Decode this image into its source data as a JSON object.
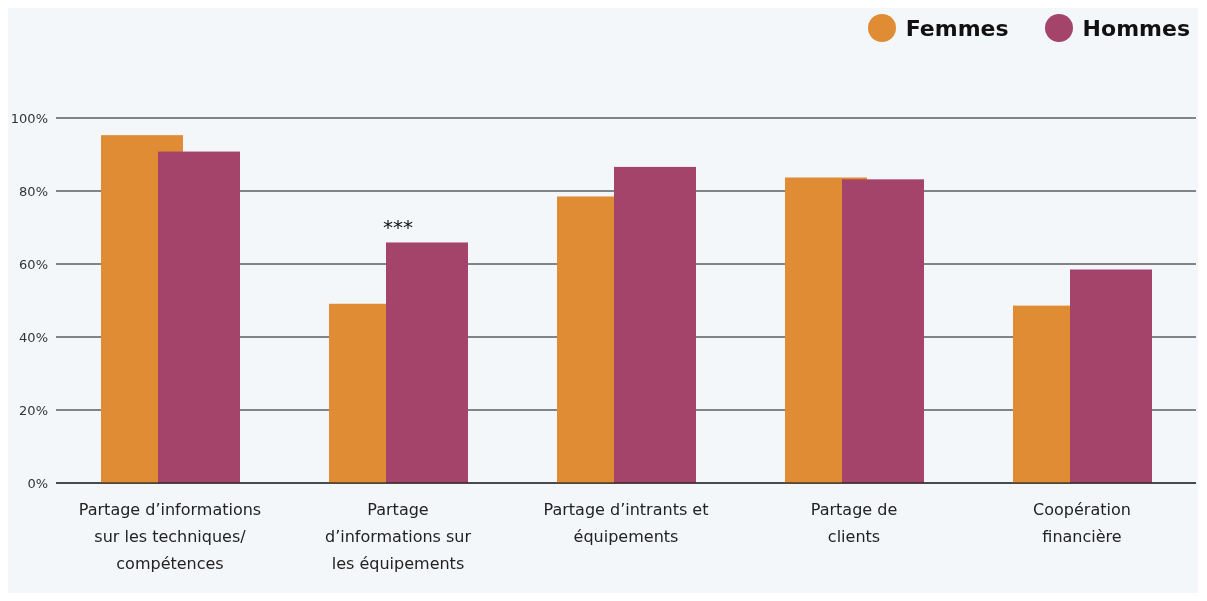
{
  "chart_data": {
    "type": "bar",
    "categories": [
      "Partage d’informations\nsur les techniques/\ncompétences",
      "Partage\nd’informations sur\nles équipements",
      "Partage d’intrants et\néquipements",
      "Partage de\nclients",
      "Coopération\nfinancière"
    ],
    "series": [
      {
        "name": "Femmes",
        "color": "#e08c35",
        "values": [
          95.3,
          49.1,
          78.5,
          83.7,
          48.6
        ]
      },
      {
        "name": "Hommes",
        "color": "#a4446b",
        "values": [
          90.8,
          65.9,
          86.6,
          83.2,
          58.5
        ]
      }
    ],
    "ylim": [
      0,
      100
    ],
    "yticks": [
      {
        "value": 0,
        "label": "0%"
      },
      {
        "value": 20,
        "label": "20%"
      },
      {
        "value": 40,
        "label": "40%"
      },
      {
        "value": 60,
        "label": "60%"
      },
      {
        "value": 80,
        "label": "80%"
      },
      {
        "value": 100,
        "label": "100%"
      }
    ],
    "grid": "y",
    "legend": "top right",
    "annotations": [
      {
        "text": "***",
        "x": "Partage\nd’informations sur\nles équipements",
        "y": 65.9
      }
    ]
  }
}
